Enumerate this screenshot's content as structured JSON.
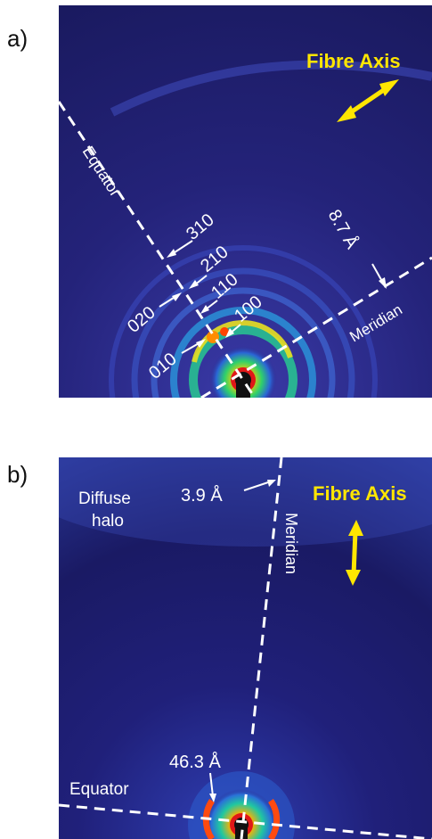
{
  "panels": [
    {
      "id": "a",
      "label": "a)",
      "fibre_axis": "Fibre Axis",
      "axes": {
        "equator": "Equator",
        "meridian": "Meridian"
      },
      "reflections": [
        "310",
        "210",
        "110",
        "100",
        "020",
        "010"
      ],
      "spacing": "8.7 Å"
    },
    {
      "id": "b",
      "label": "b)",
      "fibre_axis": "Fibre Axis",
      "halo_line1": "Diffuse",
      "halo_line2": "halo",
      "axes": {
        "equator": "Equator",
        "meridian": "Meridian"
      },
      "spacing_top": "3.9 Å",
      "spacing_bottom": "46.3 Å"
    }
  ],
  "colors": {
    "background": "#1c1c6e",
    "annotation": "#ffffff",
    "fibre_axis": "#ffe600"
  }
}
